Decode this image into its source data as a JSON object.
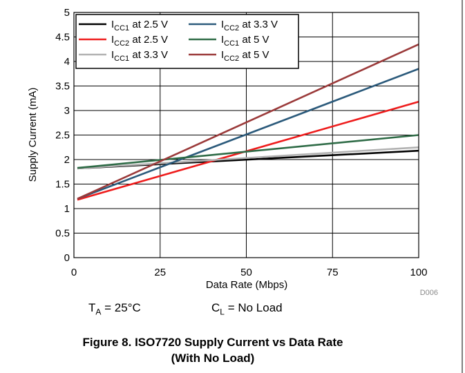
{
  "chart_data": {
    "type": "line",
    "x": [
      1,
      100
    ],
    "xlabel": "Data Rate (Mbps)",
    "ylabel": "Supply Current (mA)",
    "xlim": [
      0,
      100
    ],
    "ylim": [
      0,
      5
    ],
    "x_ticks": [
      "0",
      "25",
      "50",
      "75",
      "100"
    ],
    "y_ticks": [
      "0",
      "0.5",
      "1",
      "1.5",
      "2",
      "2.5",
      "3",
      "3.5",
      "4",
      "4.5",
      "5"
    ],
    "grid": true,
    "legend_position": "top-left",
    "series": [
      {
        "name": "ICC1 at 2.5 V",
        "label_main": "I",
        "label_sub": "CC1",
        "label_rest": " at 2.5 V",
        "color": "#000000",
        "values": [
          1.82,
          2.18
        ]
      },
      {
        "name": "ICC2 at 2.5 V",
        "label_main": "I",
        "label_sub": "CC2",
        "label_rest": " at 2.5 V",
        "color": "#ee1c1c",
        "values": [
          1.18,
          3.18
        ]
      },
      {
        "name": "ICC1 at 3.3 V",
        "label_main": "I",
        "label_sub": "CC1",
        "label_rest": " at 3.3 V",
        "color": "#b2b2b2",
        "values": [
          1.82,
          2.25
        ]
      },
      {
        "name": "ICC2 at 3.3 V",
        "label_main": "I",
        "label_sub": "CC2",
        "label_rest": " at 3.3 V",
        "color": "#2b5a7b",
        "values": [
          1.2,
          3.85
        ]
      },
      {
        "name": "ICC1 at 5 V",
        "label_main": "I",
        "label_sub": "CC1",
        "label_rest": " at 5 V",
        "color": "#2e6b46",
        "values": [
          1.83,
          2.5
        ]
      },
      {
        "name": "ICC2 at 5 V",
        "label_main": "I",
        "label_sub": "CC2",
        "label_rest": " at 5 V",
        "color": "#9b3a3a",
        "values": [
          1.2,
          4.35
        ]
      }
    ],
    "figure_code": "D006"
  },
  "conditions": {
    "ta_main": "T",
    "ta_sub": "A",
    "ta_rest": " = 25°C",
    "cl_main": "C",
    "cl_sub": "L",
    "cl_rest": " = No Load"
  },
  "caption": {
    "line1": "Figure 8. ISO7720 Supply Current vs Data Rate",
    "line2": "(With No Load)"
  }
}
